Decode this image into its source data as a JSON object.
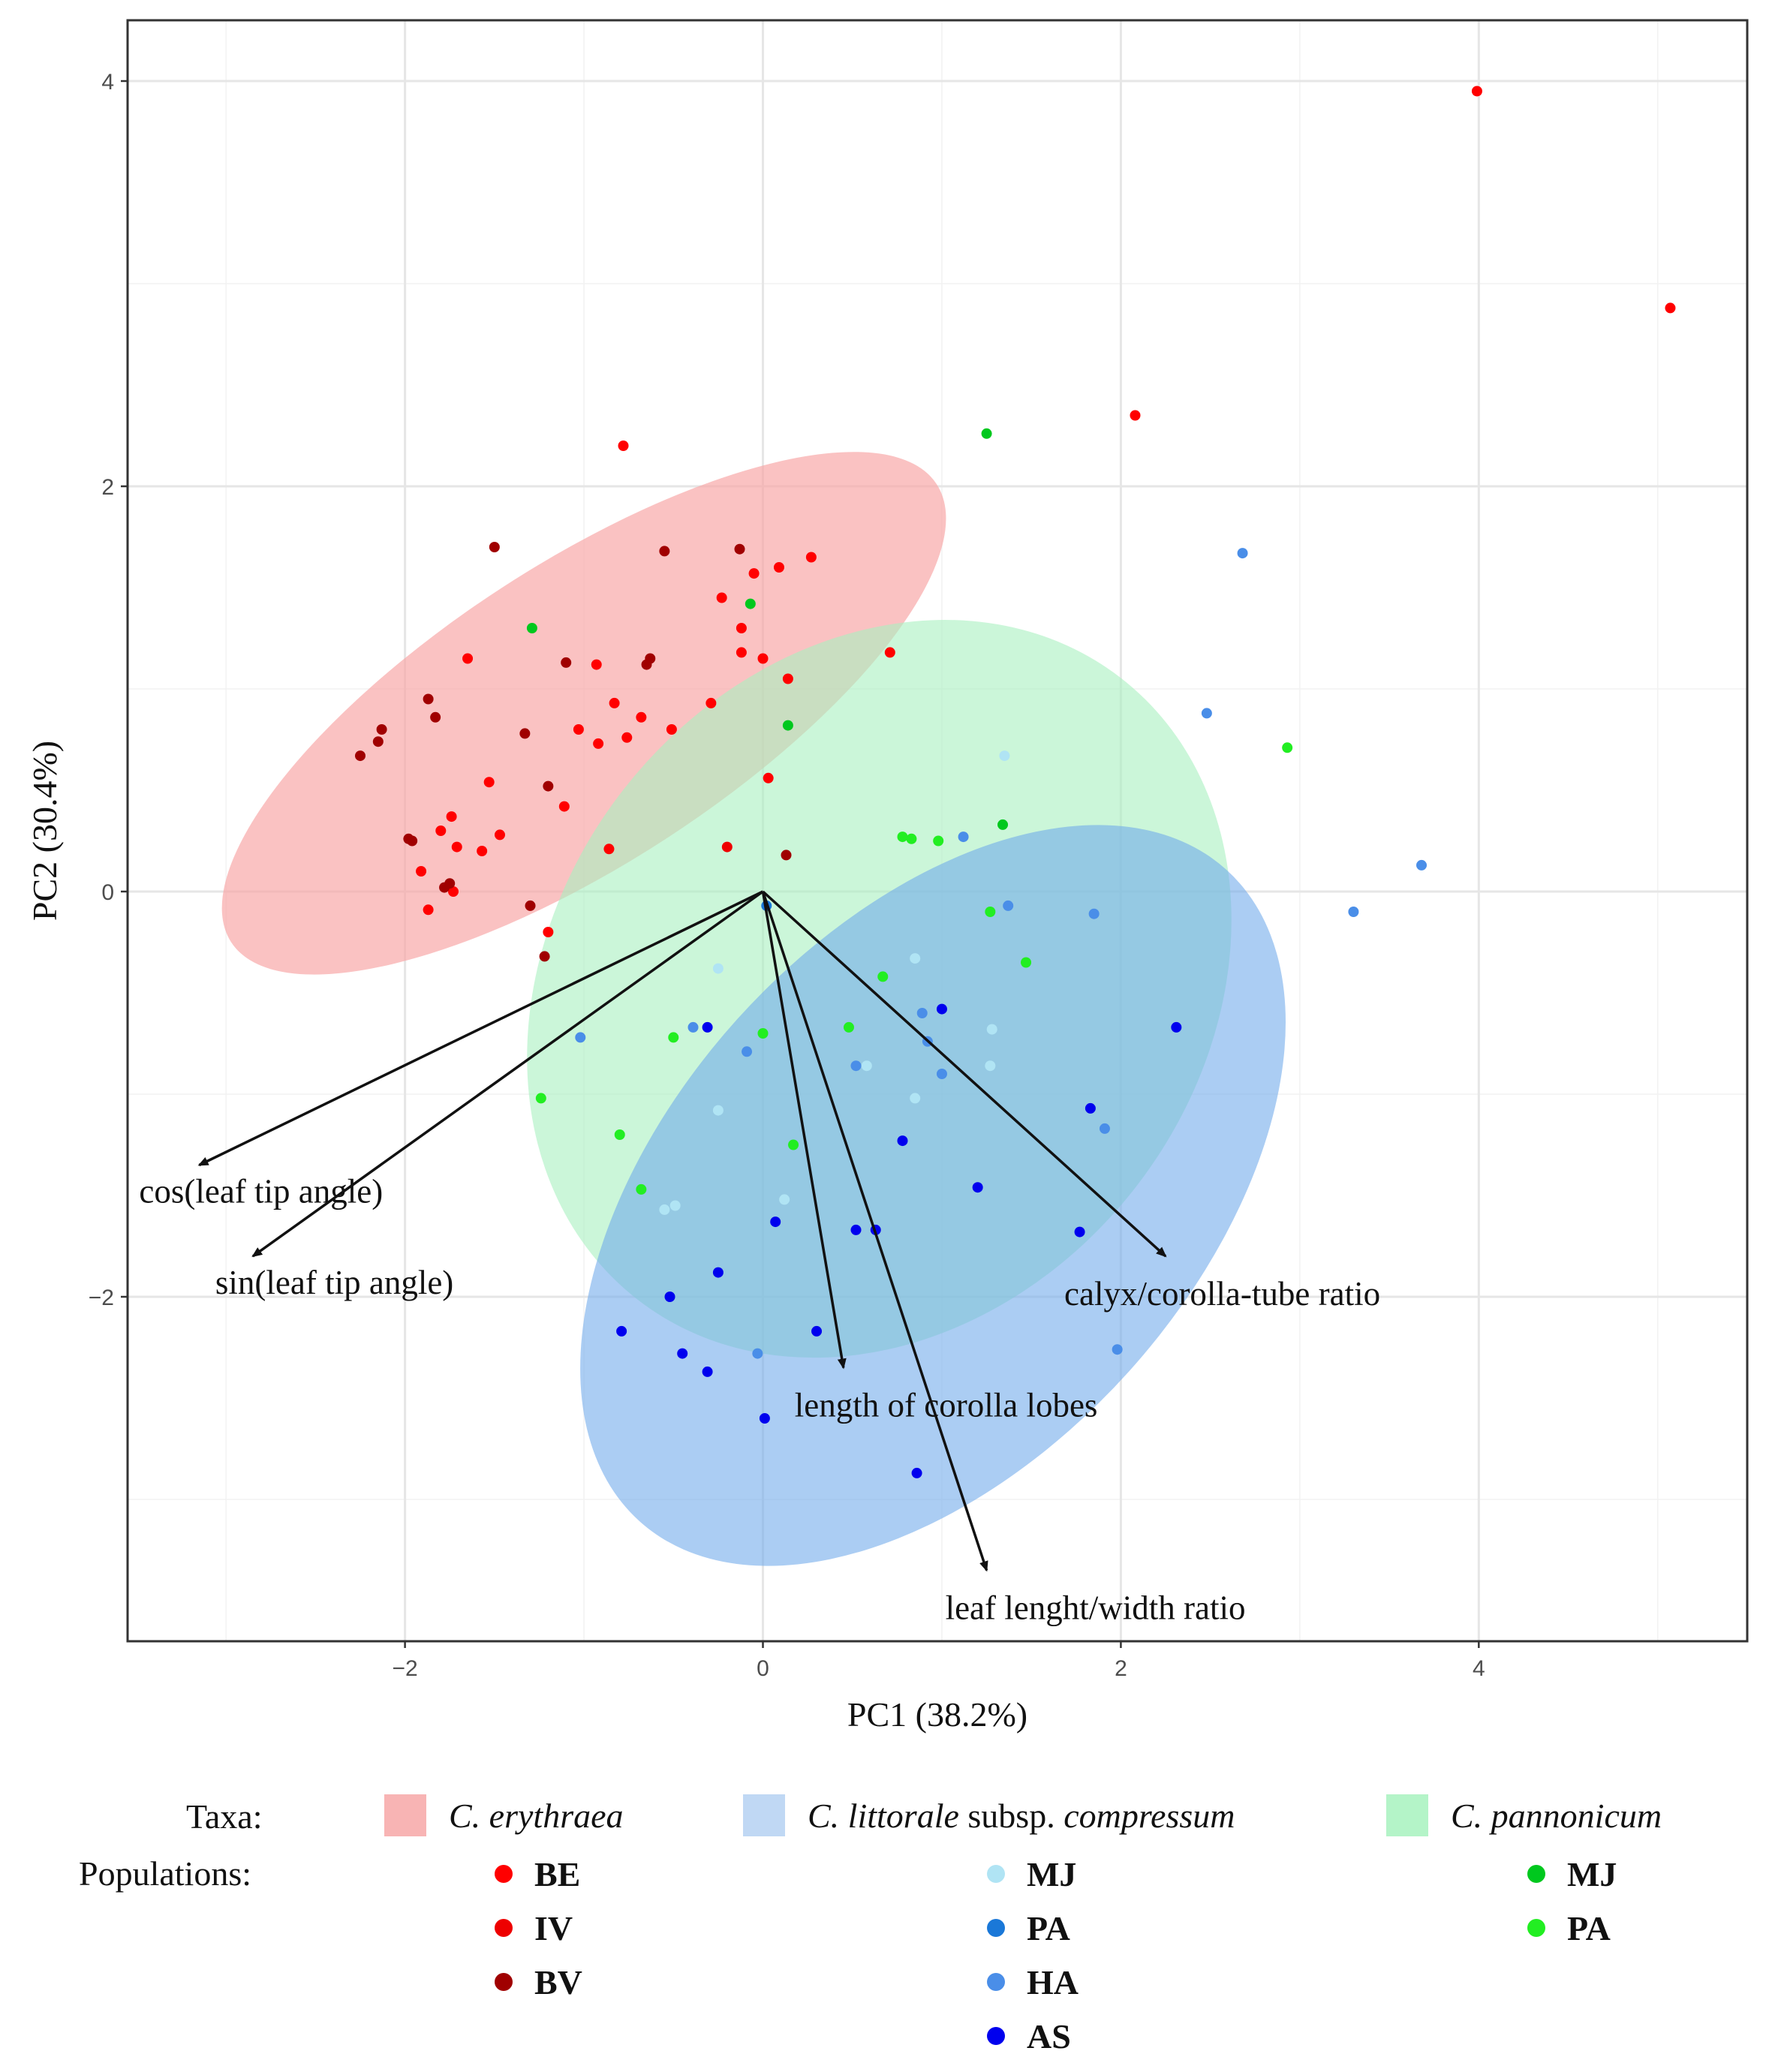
{
  "chart_data": {
    "type": "scatter",
    "subtype": "pca-biplot",
    "xlabel": "PC1 (38.2%)",
    "ylabel": "PC2 (30.4%)",
    "xlim": [
      -3.55,
      5.5
    ],
    "ylim": [
      -3.7,
      4.3
    ],
    "x_ticks": [
      -2,
      0,
      2,
      4
    ],
    "y_ticks": [
      -2,
      0,
      2,
      4
    ],
    "x_tick_labels": [
      "−2",
      "0",
      "2",
      "4"
    ],
    "y_tick_labels": [
      "−2",
      "0",
      "2",
      "4"
    ],
    "grid": true,
    "ellipses": [
      {
        "taxon": "C. erythraea",
        "color": "#f8a5a5",
        "opacity": 0.68,
        "center": [
          -1.0,
          0.88
        ],
        "semi_major": 2.35,
        "semi_minor": 0.74,
        "angle_deg": 33
      },
      {
        "taxon": "C. pannonicum",
        "color": "#a8f0c0",
        "opacity": 0.6,
        "center": [
          0.65,
          -0.48
        ],
        "semi_major": 2.2,
        "semi_minor": 1.6,
        "angle_deg": 52
      },
      {
        "taxon": "C. littorale subsp. compressum",
        "color": "#6fa8ea",
        "opacity": 0.58,
        "center": [
          0.95,
          -1.5
        ],
        "semi_major": 2.45,
        "semi_minor": 1.3,
        "angle_deg": 48
      }
    ],
    "loadings": [
      {
        "label": "cos(leaf tip angle)",
        "x": -3.15,
        "y": -1.35
      },
      {
        "label": "sin(leaf tip angle)",
        "x": -2.85,
        "y": -1.8
      },
      {
        "label": "calyx/corolla-tube ratio",
        "x": 2.25,
        "y": -1.8
      },
      {
        "label": "length of corolla lobes",
        "x": 0.45,
        "y": -2.35
      },
      {
        "label": "leaf lenght/width ratio",
        "x": 1.25,
        "y": -3.35
      }
    ],
    "series": [
      {
        "taxon": "C. erythraea",
        "population": "BE",
        "color": "#ff0000",
        "points": [
          [
            3.99,
            3.95
          ],
          [
            5.07,
            2.88
          ],
          [
            2.08,
            2.35
          ],
          [
            -0.78,
            2.2
          ],
          [
            0.27,
            1.65
          ],
          [
            0.09,
            1.6
          ],
          [
            -0.05,
            1.57
          ],
          [
            -0.23,
            1.45
          ],
          [
            0.71,
            1.18
          ],
          [
            -0.12,
            1.3
          ],
          [
            0.0,
            1.15
          ],
          [
            -0.12,
            1.18
          ],
          [
            0.14,
            1.05
          ],
          [
            -0.93,
            1.12
          ],
          [
            -1.65,
            1.15
          ],
          [
            -0.29,
            0.93
          ],
          [
            -0.83,
            0.93
          ],
          [
            -0.68,
            0.86
          ],
          [
            -1.03,
            0.8
          ],
          [
            -0.92,
            0.73
          ],
          [
            -0.76,
            0.76
          ],
          [
            -0.51,
            0.8
          ],
          [
            0.03,
            0.56
          ],
          [
            -1.53,
            0.54
          ],
          [
            -1.11,
            0.42
          ],
          [
            -1.74,
            0.37
          ],
          [
            -1.8,
            0.3
          ],
          [
            -1.71,
            0.22
          ],
          [
            -1.47,
            0.28
          ],
          [
            -1.57,
            0.2
          ],
          [
            -0.86,
            0.21
          ],
          [
            -1.91,
            0.1
          ],
          [
            -1.87,
            -0.09
          ],
          [
            -1.73,
            0.0
          ],
          [
            -1.2,
            -0.2
          ]
        ]
      },
      {
        "taxon": "C. erythraea",
        "population": "IV",
        "color": "#ee0000",
        "points": [
          [
            -0.2,
            0.22
          ]
        ]
      },
      {
        "taxon": "C. erythraea",
        "population": "BV",
        "color": "#a00000",
        "points": [
          [
            -1.5,
            1.7
          ],
          [
            -0.55,
            1.68
          ],
          [
            -0.13,
            1.69
          ],
          [
            -0.63,
            1.15
          ],
          [
            -1.1,
            1.13
          ],
          [
            -0.65,
            1.12
          ],
          [
            -1.87,
            0.95
          ],
          [
            -1.83,
            0.86
          ],
          [
            -2.13,
            0.8
          ],
          [
            -2.15,
            0.74
          ],
          [
            -2.25,
            0.67
          ],
          [
            -1.33,
            0.78
          ],
          [
            -1.2,
            0.52
          ],
          [
            -1.98,
            0.26
          ],
          [
            -1.96,
            0.25
          ],
          [
            -1.78,
            0.02
          ],
          [
            -1.75,
            0.04
          ],
          [
            -1.3,
            -0.07
          ],
          [
            0.13,
            0.18
          ],
          [
            -1.22,
            -0.32
          ]
        ]
      },
      {
        "taxon": "C. littorale subsp. compressum",
        "population": "MJ",
        "color": "#b0e4f4",
        "points": [
          [
            1.35,
            0.67
          ],
          [
            -0.25,
            -0.38
          ],
          [
            0.85,
            -0.33
          ],
          [
            1.28,
            -0.68
          ],
          [
            1.27,
            -0.86
          ],
          [
            0.85,
            -1.02
          ],
          [
            0.58,
            -0.86
          ],
          [
            -0.25,
            -1.08
          ],
          [
            0.12,
            -1.52
          ],
          [
            -0.55,
            -1.57
          ],
          [
            -0.49,
            -1.55
          ]
        ]
      },
      {
        "taxon": "C. littorale subsp. compressum",
        "population": "PA",
        "color": "#1a78d8",
        "points": [
          [
            0.02,
            -0.07
          ]
        ]
      },
      {
        "taxon": "C. littorale subsp. compressum",
        "population": "HA",
        "color": "#4a8ee8",
        "points": [
          [
            2.68,
            1.67
          ],
          [
            2.48,
            0.88
          ],
          [
            3.68,
            0.13
          ],
          [
            3.3,
            -0.1
          ],
          [
            1.12,
            0.27
          ],
          [
            1.37,
            -0.07
          ],
          [
            1.85,
            -0.11
          ],
          [
            -1.02,
            -0.72
          ],
          [
            -0.39,
            -0.67
          ],
          [
            -0.09,
            -0.79
          ],
          [
            0.52,
            -0.86
          ],
          [
            0.89,
            -0.6
          ],
          [
            0.92,
            -0.74
          ],
          [
            1.0,
            -0.9
          ],
          [
            1.91,
            -1.17
          ],
          [
            1.98,
            -2.26
          ],
          [
            -0.03,
            -2.28
          ]
        ]
      },
      {
        "taxon": "C. littorale subsp. compressum",
        "population": "AS",
        "color": "#0000ee",
        "points": [
          [
            2.31,
            -0.67
          ],
          [
            1.0,
            -0.58
          ],
          [
            -0.31,
            -0.67
          ],
          [
            1.83,
            -1.07
          ],
          [
            0.78,
            -1.23
          ],
          [
            1.2,
            -1.46
          ],
          [
            0.07,
            -1.63
          ],
          [
            0.52,
            -1.67
          ],
          [
            0.63,
            -1.67
          ],
          [
            1.77,
            -1.68
          ],
          [
            -0.25,
            -1.88
          ],
          [
            -0.52,
            -2.0
          ],
          [
            -0.79,
            -2.17
          ],
          [
            0.3,
            -2.17
          ],
          [
            -0.45,
            -2.28
          ],
          [
            -0.31,
            -2.37
          ],
          [
            0.01,
            -2.6
          ],
          [
            0.86,
            -2.87
          ]
        ]
      },
      {
        "taxon": "C. pannonicum",
        "population": "MJ",
        "color": "#00c81e",
        "points": [
          [
            1.25,
            2.26
          ],
          [
            -1.29,
            1.3
          ],
          [
            -0.07,
            1.42
          ],
          [
            0.14,
            0.82
          ],
          [
            1.34,
            0.33
          ]
        ]
      },
      {
        "taxon": "C. pannonicum",
        "population": "PA",
        "color": "#22ee22",
        "points": [
          [
            2.93,
            0.71
          ],
          [
            0.78,
            0.27
          ],
          [
            0.83,
            0.26
          ],
          [
            0.98,
            0.25
          ],
          [
            1.27,
            -0.1
          ],
          [
            1.47,
            -0.35
          ],
          [
            0.67,
            -0.42
          ],
          [
            0.48,
            -0.67
          ],
          [
            0.0,
            -0.7
          ],
          [
            -0.5,
            -0.72
          ],
          [
            -1.24,
            -1.02
          ],
          [
            0.17,
            -1.25
          ],
          [
            -0.8,
            -1.2
          ],
          [
            -0.68,
            -1.47
          ]
        ]
      }
    ]
  },
  "legend": {
    "taxa_title": "Taxa:",
    "populations_title": "Populations:",
    "taxa": [
      {
        "italic_part1": "C. erythraea",
        "normal_part": "",
        "italic_part2": "",
        "color": "#f8b4b4"
      },
      {
        "italic_part1": "C. littorale",
        "normal_part": " subsp. ",
        "italic_part2": "compressum",
        "color": "#c0d8f4"
      },
      {
        "italic_part1": "C.  pannonicum",
        "normal_part": "",
        "italic_part2": "",
        "color": "#b4f4c8"
      }
    ],
    "populations": [
      [
        {
          "label": "BE",
          "color": "#ff0000"
        },
        {
          "label": "IV",
          "color": "#ee0000"
        },
        {
          "label": "BV",
          "color": "#a00000"
        }
      ],
      [
        {
          "label": "MJ",
          "color": "#b0e4f4"
        },
        {
          "label": "PA",
          "color": "#1a78d8"
        },
        {
          "label": "HA",
          "color": "#4a8ee8"
        },
        {
          "label": "AS",
          "color": "#0000ee"
        }
      ],
      [
        {
          "label": "MJ",
          "color": "#00c81e"
        },
        {
          "label": "PA",
          "color": "#22ee22"
        }
      ]
    ]
  }
}
